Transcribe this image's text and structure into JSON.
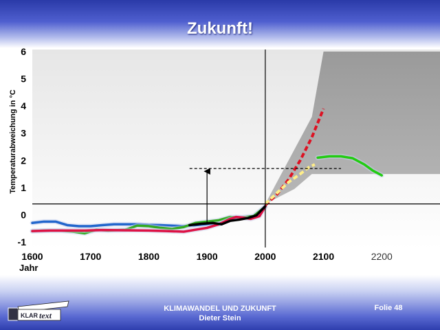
{
  "slide": {
    "title": "Zukunft!",
    "footer_line1": "KLIMAWANDEL UND ZUKUNFT",
    "footer_line2": "Dieter Stein",
    "slide_number": "Folie 48",
    "logo_text_a": "KLAR",
    "logo_text_b": "text"
  },
  "chart_data": {
    "type": "line",
    "title": "",
    "ylabel": "Temperaturabweichung in °C",
    "xlabel": "Jahr",
    "xlim": [
      1600,
      2300
    ],
    "ylim": [
      -1,
      6
    ],
    "x_ticks": [
      1600,
      1700,
      1800,
      1900,
      2000,
      2100,
      2200
    ],
    "y_ticks": [
      -1,
      0,
      1,
      2,
      3,
      4,
      5,
      6
    ],
    "reference_lines": {
      "vertical_x": 2000,
      "horizontal_y": 0.4
    },
    "marker": {
      "dashed_y": 1.7,
      "dashed_x_from": 1870,
      "dashed_x_to": 2130,
      "arrow_x": 1900,
      "arrow_from_y": -0.3,
      "arrow_to_y": 1.7
    },
    "uncertainty_band": {
      "upper": [
        [
          2000,
          0.4
        ],
        [
          2080,
          3.6
        ],
        [
          2100,
          6.0
        ],
        [
          2300,
          6.0
        ]
      ],
      "lower": [
        [
          2000,
          0.4
        ],
        [
          2050,
          0.95
        ],
        [
          2080,
          1.5
        ],
        [
          2300,
          1.5
        ]
      ]
    },
    "series": [
      {
        "color": "#2266cc",
        "dashed": false,
        "points": [
          [
            1600,
            -0.3
          ],
          [
            1620,
            -0.25
          ],
          [
            1640,
            -0.25
          ],
          [
            1660,
            -0.38
          ],
          [
            1680,
            -0.42
          ],
          [
            1700,
            -0.42
          ],
          [
            1720,
            -0.38
          ],
          [
            1740,
            -0.35
          ],
          [
            1760,
            -0.35
          ],
          [
            1780,
            -0.35
          ],
          [
            1800,
            -0.37
          ],
          [
            1820,
            -0.38
          ],
          [
            1840,
            -0.4
          ],
          [
            1860,
            -0.42
          ],
          [
            1880,
            -0.38
          ],
          [
            1900,
            -0.34
          ],
          [
            1920,
            -0.33
          ],
          [
            1940,
            -0.18
          ],
          [
            1960,
            -0.1
          ],
          [
            1980,
            -0.05
          ],
          [
            2000,
            0.3
          ]
        ]
      },
      {
        "color": "#33aa22",
        "dashed": false,
        "points": [
          [
            1600,
            -0.6
          ],
          [
            1620,
            -0.58
          ],
          [
            1650,
            -0.58
          ],
          [
            1670,
            -0.62
          ],
          [
            1690,
            -0.68
          ],
          [
            1710,
            -0.55
          ],
          [
            1730,
            -0.58
          ],
          [
            1760,
            -0.55
          ],
          [
            1780,
            -0.4
          ],
          [
            1800,
            -0.42
          ],
          [
            1820,
            -0.48
          ],
          [
            1840,
            -0.52
          ],
          [
            1860,
            -0.45
          ],
          [
            1880,
            -0.3
          ],
          [
            1900,
            -0.25
          ],
          [
            1920,
            -0.2
          ],
          [
            1940,
            -0.08
          ],
          [
            1960,
            -0.1
          ],
          [
            1980,
            -0.05
          ],
          [
            2000,
            0.3
          ]
        ]
      },
      {
        "color": "#dd1144",
        "dashed": false,
        "points": [
          [
            1600,
            -0.6
          ],
          [
            1630,
            -0.58
          ],
          [
            1660,
            -0.58
          ],
          [
            1690,
            -0.58
          ],
          [
            1720,
            -0.56
          ],
          [
            1760,
            -0.57
          ],
          [
            1800,
            -0.58
          ],
          [
            1830,
            -0.6
          ],
          [
            1860,
            -0.62
          ],
          [
            1880,
            -0.55
          ],
          [
            1900,
            -0.48
          ],
          [
            1920,
            -0.35
          ],
          [
            1940,
            -0.15
          ],
          [
            1950,
            -0.08
          ],
          [
            1960,
            -0.1
          ],
          [
            1975,
            -0.15
          ],
          [
            1990,
            -0.05
          ],
          [
            2000,
            0.3
          ]
        ]
      },
      {
        "color": "#000000",
        "dashed": false,
        "points": [
          [
            1870,
            -0.38
          ],
          [
            1890,
            -0.33
          ],
          [
            1910,
            -0.3
          ],
          [
            1925,
            -0.35
          ],
          [
            1940,
            -0.22
          ],
          [
            1955,
            -0.18
          ],
          [
            1970,
            -0.12
          ],
          [
            1985,
            -0.02
          ],
          [
            2000,
            0.32
          ]
        ]
      },
      {
        "color": "#dd1122",
        "dashed": true,
        "points": [
          [
            2000,
            0.35
          ],
          [
            2020,
            0.75
          ],
          [
            2040,
            1.3
          ],
          [
            2060,
            2.0
          ],
          [
            2080,
            2.85
          ],
          [
            2100,
            3.9
          ]
        ]
      },
      {
        "color": "#ffee88",
        "dashed": true,
        "points": [
          [
            2000,
            0.4
          ],
          [
            2020,
            0.8
          ],
          [
            2040,
            1.2
          ],
          [
            2060,
            1.5
          ],
          [
            2075,
            1.75
          ],
          [
            2085,
            1.85
          ]
        ]
      },
      {
        "color": "#22cc11",
        "dashed": false,
        "points": [
          [
            2090,
            2.1
          ],
          [
            2110,
            2.15
          ],
          [
            2130,
            2.15
          ],
          [
            2150,
            2.08
          ],
          [
            2170,
            1.85
          ],
          [
            2185,
            1.62
          ],
          [
            2200,
            1.45
          ]
        ]
      }
    ]
  }
}
